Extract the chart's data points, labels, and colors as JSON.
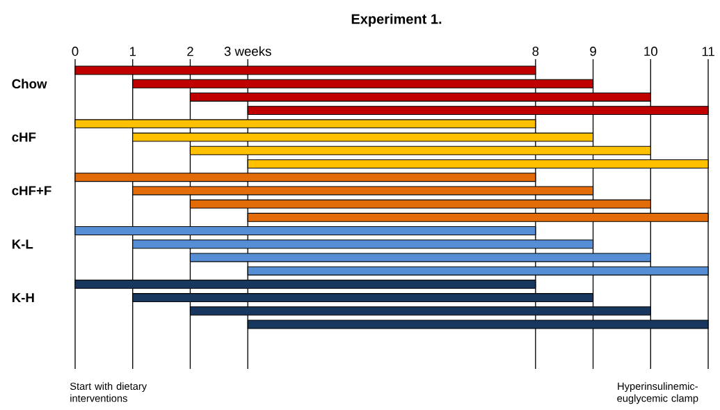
{
  "chart_data": {
    "type": "bar",
    "title": "Experiment 1.",
    "orientation": "horizontal",
    "categories": [
      null,
      "Chow",
      null,
      null,
      null,
      "cHF",
      null,
      null,
      null,
      "cHF+F",
      null,
      null,
      null,
      "K-L",
      null,
      null,
      null,
      "K-H",
      null,
      null
    ],
    "base": [
      0,
      1,
      2,
      3,
      0,
      1,
      2,
      3,
      0,
      1,
      2,
      3,
      0,
      1,
      2,
      3,
      0,
      1,
      2,
      3
    ],
    "values": [
      8,
      8,
      8,
      8,
      8,
      8,
      8,
      8,
      8,
      8,
      8,
      8,
      8,
      8,
      8,
      8,
      8,
      8,
      8,
      8
    ],
    "colors": [
      "#c00000",
      "#c00000",
      "#c00000",
      "#c00000",
      "#ffc000",
      "#ffc000",
      "#ffc000",
      "#ffc000",
      "#e36c09",
      "#e36c09",
      "#e36c09",
      "#e36c09",
      "#558ed5",
      "#558ed5",
      "#558ed5",
      "#558ed5",
      "#17375e",
      "#17375e",
      "#17375e",
      "#17375e"
    ],
    "xlim": [
      0,
      11
    ],
    "xticks": [
      0,
      1,
      2,
      {
        "value": 3,
        "label": "3 weeks"
      },
      8,
      9,
      10,
      11
    ],
    "grid": "x",
    "annotations": [
      "Start with dietary interventions",
      "Hyperinsulinemic-euglycemic clamp"
    ]
  }
}
